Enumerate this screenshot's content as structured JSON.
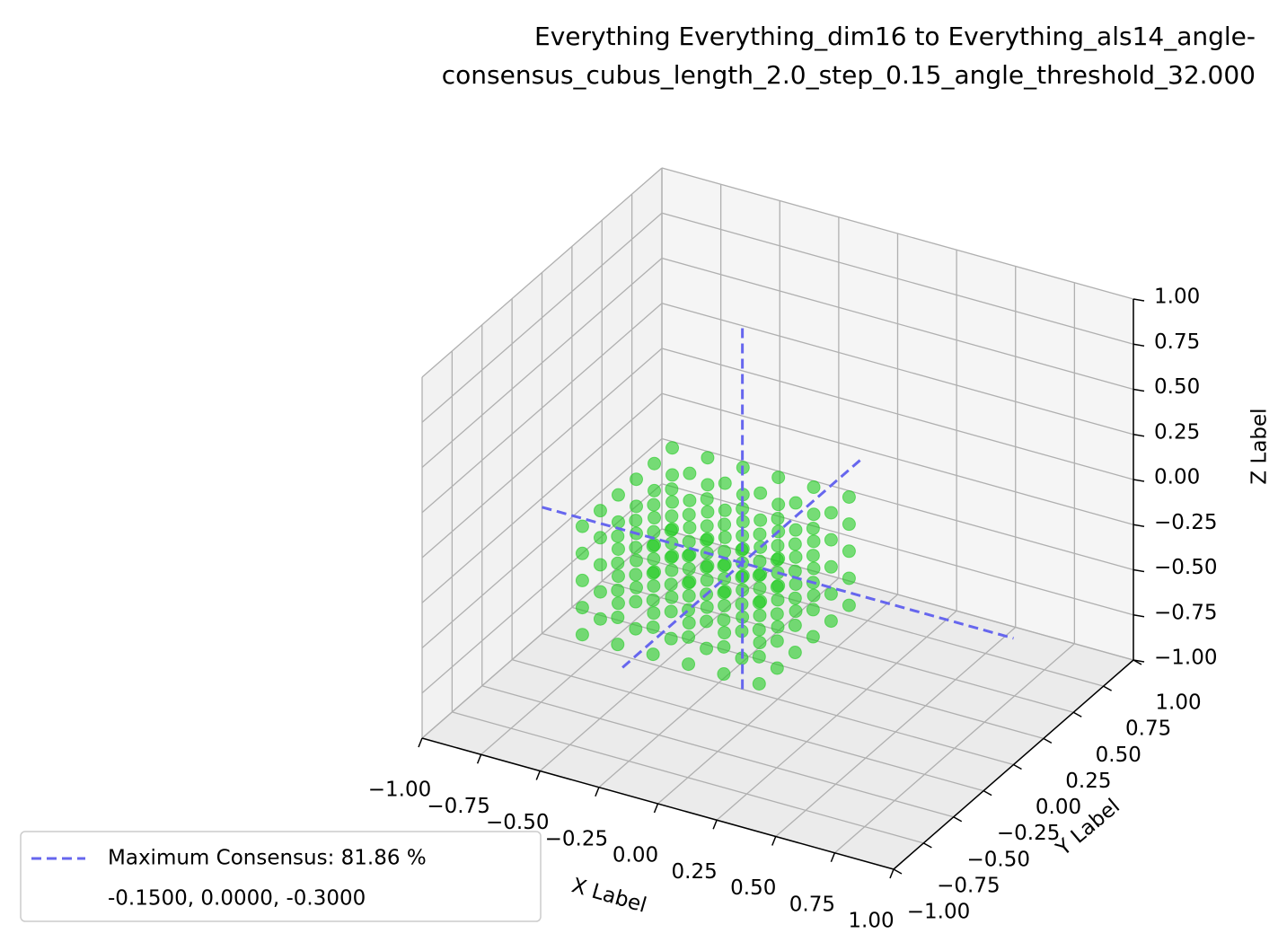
{
  "chart_data": {
    "type": "scatter3d",
    "title": [
      "Everything Everything_dim16 to Everything_als14_angle-",
      "consensus_cubus_length_2.0_step_0.15_angle_threshold_32.000"
    ],
    "xlabel": "X Label",
    "ylabel": "Y Label",
    "zlabel": "Z Label",
    "xlim": [
      -1,
      1
    ],
    "ylim": [
      -1,
      1
    ],
    "zlim": [
      -1,
      1
    ],
    "xticks": [
      {
        "value": -1,
        "label": "−1.00"
      },
      {
        "value": -0.75,
        "label": "−0.75"
      },
      {
        "value": -0.5,
        "label": "−0.50"
      },
      {
        "value": -0.25,
        "label": "−0.25"
      },
      {
        "value": 0,
        "label": "0.00"
      },
      {
        "value": 0.25,
        "label": "0.25"
      },
      {
        "value": 0.5,
        "label": "0.50"
      },
      {
        "value": 0.75,
        "label": "0.75"
      },
      {
        "value": 1,
        "label": "1.00"
      }
    ],
    "yticks": [
      {
        "value": -1,
        "label": "−1.00"
      },
      {
        "value": -0.75,
        "label": "−0.75"
      },
      {
        "value": -0.5,
        "label": "−0.50"
      },
      {
        "value": -0.25,
        "label": "−0.25"
      },
      {
        "value": 0,
        "label": "0.00"
      },
      {
        "value": 0.25,
        "label": "0.25"
      },
      {
        "value": 0.5,
        "label": "0.50"
      },
      {
        "value": 0.75,
        "label": "0.75"
      },
      {
        "value": 1,
        "label": "1.00"
      }
    ],
    "zticks": [
      {
        "value": -1,
        "label": "−1.00"
      },
      {
        "value": -0.75,
        "label": "−0.75"
      },
      {
        "value": -0.5,
        "label": "−0.50"
      },
      {
        "value": -0.25,
        "label": "−0.25"
      },
      {
        "value": 0,
        "label": "0.00"
      },
      {
        "value": 0.25,
        "label": "0.25"
      },
      {
        "value": 0.5,
        "label": "0.50"
      },
      {
        "value": 0.75,
        "label": "0.75"
      },
      {
        "value": 1,
        "label": "1.00"
      }
    ],
    "grid": true,
    "legend": "lower left",
    "series": [
      {
        "color": "#22cc22",
        "x": [
          -0.6,
          -0.6,
          -0.6,
          -0.6,
          -0.6,
          -0.6,
          -0.6,
          -0.6,
          -0.6,
          -0.6,
          -0.6,
          -0.6,
          -0.6,
          -0.6,
          -0.6,
          -0.6,
          -0.6,
          -0.6,
          -0.6,
          -0.6,
          -0.6,
          -0.6,
          -0.6,
          -0.6,
          -0.6,
          -0.6,
          -0.6,
          -0.6,
          -0.6,
          -0.6,
          -0.45,
          -0.45,
          -0.45,
          -0.45,
          -0.45,
          -0.45,
          -0.45,
          -0.45,
          -0.45,
          -0.45,
          -0.45,
          -0.45,
          -0.45,
          -0.45,
          -0.45,
          -0.45,
          -0.45,
          -0.45,
          -0.45,
          -0.45,
          -0.45,
          -0.45,
          -0.45,
          -0.45,
          -0.45,
          -0.45,
          -0.45,
          -0.45,
          -0.45,
          -0.45,
          -0.3,
          -0.3,
          -0.3,
          -0.3,
          -0.3,
          -0.3,
          -0.3,
          -0.3,
          -0.3,
          -0.3,
          -0.3,
          -0.3,
          -0.3,
          -0.3,
          -0.3,
          -0.3,
          -0.3,
          -0.3,
          -0.3,
          -0.3,
          -0.3,
          -0.3,
          -0.3,
          -0.3,
          -0.3,
          -0.3,
          -0.3,
          -0.3,
          -0.3,
          -0.3,
          -0.15,
          -0.15,
          -0.15,
          -0.15,
          -0.15,
          -0.15,
          -0.15,
          -0.15,
          -0.15,
          -0.15,
          -0.15,
          -0.15,
          -0.15,
          -0.15,
          -0.15,
          -0.15,
          -0.15,
          -0.15,
          -0.15,
          -0.15,
          -0.15,
          -0.15,
          -0.15,
          -0.15,
          -0.15,
          -0.15,
          -0.15,
          -0.15,
          -0.15,
          -0.15,
          0,
          0,
          0,
          0,
          0,
          0,
          0,
          0,
          0,
          0,
          0,
          0,
          0,
          0,
          0,
          0,
          0,
          0,
          0,
          0,
          0,
          0,
          0,
          0,
          0,
          0,
          0,
          0,
          0,
          0,
          0.15,
          0.15,
          0.15,
          0.15,
          0.15,
          0.15,
          0.15,
          0.15,
          0.15,
          0.15,
          0.15,
          0.15,
          0.15,
          0.15,
          0.15,
          0.15,
          0.15,
          0.15,
          0.15,
          0.15,
          0.15,
          0.15,
          0.15,
          0.15,
          0.15,
          0.15,
          0.15,
          0.15,
          0.15,
          0.15
        ],
        "y": [
          -0.45,
          -0.45,
          -0.45,
          -0.45,
          -0.45,
          -0.3,
          -0.3,
          -0.3,
          -0.3,
          -0.3,
          -0.15,
          -0.15,
          -0.15,
          -0.15,
          -0.15,
          0,
          0,
          0,
          0,
          0,
          0.15,
          0.15,
          0.15,
          0.15,
          0.15,
          0.3,
          0.3,
          0.3,
          0.3,
          0.3,
          -0.45,
          -0.45,
          -0.45,
          -0.45,
          -0.45,
          -0.3,
          -0.3,
          -0.3,
          -0.3,
          -0.3,
          -0.15,
          -0.15,
          -0.15,
          -0.15,
          -0.15,
          0,
          0,
          0,
          0,
          0,
          0.15,
          0.15,
          0.15,
          0.15,
          0.15,
          0.3,
          0.3,
          0.3,
          0.3,
          0.3,
          -0.45,
          -0.45,
          -0.45,
          -0.45,
          -0.45,
          -0.3,
          -0.3,
          -0.3,
          -0.3,
          -0.3,
          -0.15,
          -0.15,
          -0.15,
          -0.15,
          -0.15,
          0,
          0,
          0,
          0,
          0,
          0.15,
          0.15,
          0.15,
          0.15,
          0.15,
          0.3,
          0.3,
          0.3,
          0.3,
          0.3,
          -0.45,
          -0.45,
          -0.45,
          -0.45,
          -0.45,
          -0.3,
          -0.3,
          -0.3,
          -0.3,
          -0.3,
          -0.15,
          -0.15,
          -0.15,
          -0.15,
          -0.15,
          0,
          0,
          0,
          0,
          0,
          0.15,
          0.15,
          0.15,
          0.15,
          0.15,
          0.3,
          0.3,
          0.3,
          0.3,
          0.3,
          -0.45,
          -0.45,
          -0.45,
          -0.45,
          -0.45,
          -0.3,
          -0.3,
          -0.3,
          -0.3,
          -0.3,
          -0.15,
          -0.15,
          -0.15,
          -0.15,
          -0.15,
          0,
          0,
          0,
          0,
          0,
          0.15,
          0.15,
          0.15,
          0.15,
          0.15,
          0.3,
          0.3,
          0.3,
          0.3,
          0.3,
          -0.45,
          -0.45,
          -0.45,
          -0.45,
          -0.45,
          -0.3,
          -0.3,
          -0.3,
          -0.3,
          -0.3,
          -0.15,
          -0.15,
          -0.15,
          -0.15,
          -0.15,
          0,
          0,
          0,
          0,
          0,
          0.15,
          0.15,
          0.15,
          0.15,
          0.15,
          0.3,
          0.3,
          0.3,
          0.3,
          0.3
        ],
        "z": [
          -0.6,
          -0.45,
          -0.3,
          -0.15,
          0,
          -0.6,
          -0.45,
          -0.3,
          -0.15,
          0,
          -0.6,
          -0.45,
          -0.3,
          -0.15,
          0,
          -0.6,
          -0.45,
          -0.3,
          -0.15,
          0,
          -0.6,
          -0.45,
          -0.3,
          -0.15,
          0,
          -0.6,
          -0.45,
          -0.3,
          -0.15,
          0,
          -0.6,
          -0.45,
          -0.3,
          -0.15,
          0,
          -0.6,
          -0.45,
          -0.3,
          -0.15,
          0,
          -0.6,
          -0.45,
          -0.3,
          -0.15,
          0,
          -0.6,
          -0.45,
          -0.3,
          -0.15,
          0,
          -0.6,
          -0.45,
          -0.3,
          -0.15,
          0,
          -0.6,
          -0.45,
          -0.3,
          -0.15,
          0,
          -0.6,
          -0.45,
          -0.3,
          -0.15,
          0,
          -0.6,
          -0.45,
          -0.3,
          -0.15,
          0,
          -0.6,
          -0.45,
          -0.3,
          -0.15,
          0,
          -0.6,
          -0.45,
          -0.3,
          -0.15,
          0,
          -0.6,
          -0.45,
          -0.3,
          -0.15,
          0,
          -0.6,
          -0.45,
          -0.3,
          -0.15,
          0,
          -0.6,
          -0.45,
          -0.3,
          -0.15,
          0,
          -0.6,
          -0.45,
          -0.3,
          -0.15,
          0,
          -0.6,
          -0.45,
          -0.3,
          -0.15,
          0,
          -0.6,
          -0.45,
          -0.3,
          -0.15,
          0,
          -0.6,
          -0.45,
          -0.3,
          -0.15,
          0,
          -0.6,
          -0.45,
          -0.3,
          -0.15,
          0,
          -0.6,
          -0.45,
          -0.3,
          -0.15,
          0,
          -0.6,
          -0.45,
          -0.3,
          -0.15,
          0,
          -0.6,
          -0.45,
          -0.3,
          -0.15,
          0,
          -0.6,
          -0.45,
          -0.3,
          -0.15,
          0,
          -0.6,
          -0.45,
          -0.3,
          -0.15,
          0,
          -0.6,
          -0.45,
          -0.3,
          -0.15,
          0,
          -0.6,
          -0.45,
          -0.3,
          -0.15,
          0,
          -0.6,
          -0.45,
          -0.3,
          -0.15,
          0,
          -0.6,
          -0.45,
          -0.3,
          -0.15,
          0,
          -0.6,
          -0.45,
          -0.3,
          -0.15,
          0,
          -0.6,
          -0.45,
          -0.3,
          -0.15,
          0,
          -0.6,
          -0.45,
          -0.3,
          -0.15,
          0
        ]
      }
    ],
    "consensus": {
      "name": "Maximum Consensus: 81.86 %",
      "color": "#6666ee",
      "x": -0.15,
      "y": 0,
      "z": -0.3,
      "label": "-0.1500, 0.0000, -0.3000"
    }
  }
}
